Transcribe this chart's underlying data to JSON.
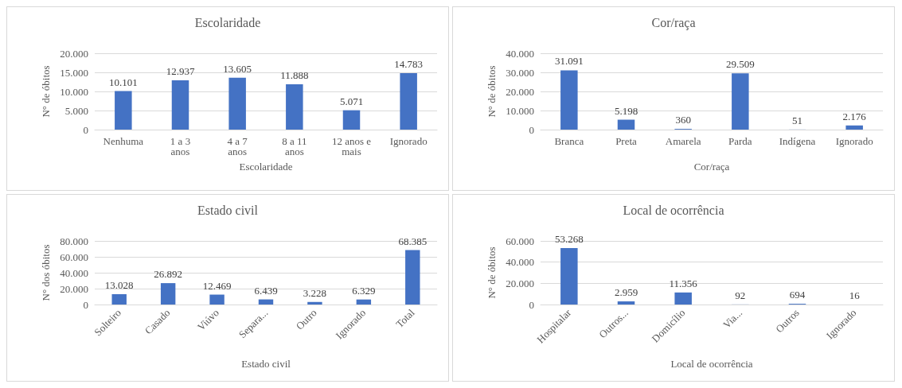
{
  "chart_data": [
    {
      "type": "bar",
      "title": "Escolaridade",
      "xlabel": "Escolaridade",
      "ylabel": "N° de óbitos",
      "color": "#4472c4",
      "grid": "y",
      "categories": [
        "Nenhuma",
        "1 a 3 anos",
        "4 a 7 anos",
        "8 a 11 anos",
        "12 anos e mais",
        "Ignorado"
      ],
      "values": [
        10101,
        12937,
        13605,
        11888,
        5071,
        14783
      ],
      "value_labels": [
        "10.101",
        "12.937",
        "13.605",
        "11.888",
        "5.071",
        "14.783"
      ],
      "ylim": [
        0,
        20000
      ],
      "yticks": [
        {
          "value": 0,
          "label": "0"
        },
        {
          "value": 5000,
          "label": "5.000"
        },
        {
          "value": 10000,
          "label": "10.000"
        },
        {
          "value": 15000,
          "label": "15.000"
        },
        {
          "value": 20000,
          "label": "20.000"
        }
      ]
    },
    {
      "type": "bar",
      "title": "Cor/raça",
      "xlabel": "Cor/raça",
      "ylabel": "N° de óbitos",
      "color": "#4472c4",
      "grid": "y",
      "categories": [
        "Branca",
        "Preta",
        "Amarela",
        "Parda",
        "Indígena",
        "Ignorado"
      ],
      "values": [
        31091,
        5198,
        360,
        29509,
        51,
        2176
      ],
      "value_labels": [
        "31.091",
        "5.198",
        "360",
        "29.509",
        "51",
        "2.176"
      ],
      "ylim": [
        0,
        40000
      ],
      "yticks": [
        {
          "value": 0,
          "label": "0"
        },
        {
          "value": 10000,
          "label": "10.000"
        },
        {
          "value": 20000,
          "label": "20.000"
        },
        {
          "value": 30000,
          "label": "30.000"
        },
        {
          "value": 40000,
          "label": "40.000"
        }
      ]
    },
    {
      "type": "bar",
      "title": "Estado civil",
      "xlabel": "Estado civil",
      "ylabel": "N° dos óbitos",
      "color": "#4472c4",
      "grid": "y",
      "categories": [
        "Solteiro",
        "Casado",
        "Viúvo",
        "Separa...",
        "Outro",
        "Ignorado",
        "Total"
      ],
      "values": [
        13028,
        26892,
        12469,
        6439,
        3228,
        6329,
        68385
      ],
      "value_labels": [
        "13.028",
        "26.892",
        "12.469",
        "6.439",
        "3.228",
        "6.329",
        "68.385"
      ],
      "ylim": [
        0,
        80000
      ],
      "yticks": [
        {
          "value": 0,
          "label": "0"
        },
        {
          "value": 20000,
          "label": "20.000"
        },
        {
          "value": 40000,
          "label": "40.000"
        },
        {
          "value": 60000,
          "label": "60.000"
        },
        {
          "value": 80000,
          "label": "80.000"
        }
      ]
    },
    {
      "type": "bar",
      "title": "Local de ocorrência",
      "xlabel": "Local de ocorrência",
      "ylabel": "N° de óbitos",
      "color": "#4472c4",
      "grid": "y",
      "categories": [
        "Hospitalar",
        "Outros...",
        "Domicílio",
        "Via...",
        "Outros",
        "Ignorado"
      ],
      "values": [
        53268,
        2959,
        11356,
        92,
        694,
        16
      ],
      "value_labels": [
        "53.268",
        "2.959",
        "11.356",
        "92",
        "694",
        "16"
      ],
      "ylim": [
        0,
        60000
      ],
      "yticks": [
        {
          "value": 0,
          "label": "0"
        },
        {
          "value": 20000,
          "label": "20.000"
        },
        {
          "value": 40000,
          "label": "40.000"
        },
        {
          "value": 60000,
          "label": "60.000"
        }
      ]
    }
  ]
}
